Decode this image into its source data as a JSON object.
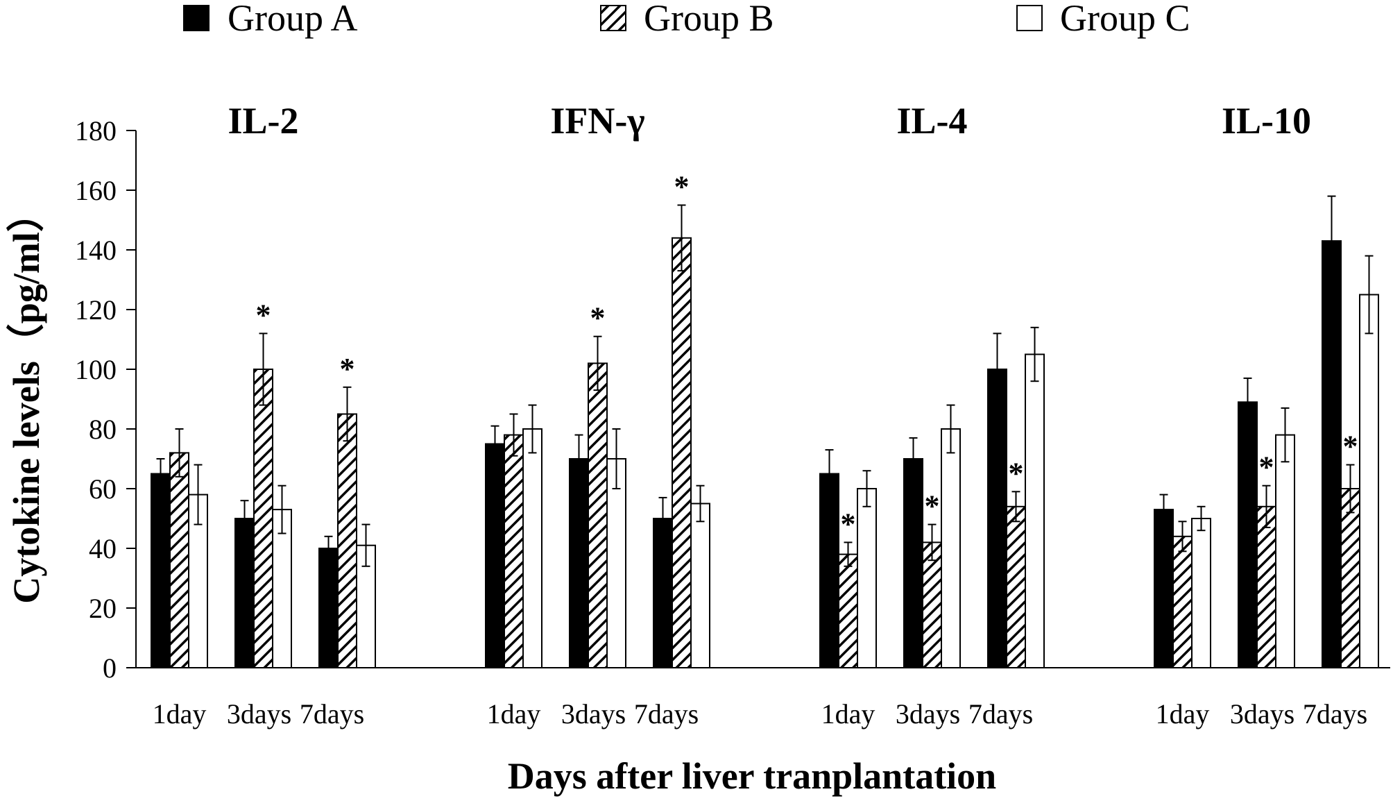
{
  "chart_data": {
    "type": "bar",
    "xlabel": "Days after liver tranplantation",
    "ylabel": "Cytokine levels（pg/ml）",
    "ylim": [
      0,
      180
    ],
    "yticks": [
      0,
      20,
      40,
      60,
      80,
      100,
      120,
      140,
      160,
      180
    ],
    "grid": false,
    "legend_position": "top",
    "legend": [
      {
        "name": "Group A",
        "fill": "solid-black"
      },
      {
        "name": "Group B",
        "fill": "diagonal-hatch"
      },
      {
        "name": "Group C",
        "fill": "white"
      }
    ],
    "significance_marker": "*",
    "panels": [
      {
        "title": "IL-2",
        "categories": [
          "1day",
          "3days",
          "7days"
        ],
        "series": [
          {
            "name": "Group A",
            "values": [
              65,
              50,
              40
            ],
            "errors": [
              5,
              6,
              4
            ]
          },
          {
            "name": "Group B",
            "values": [
              72,
              100,
              85
            ],
            "errors": [
              8,
              12,
              9
            ]
          },
          {
            "name": "Group C",
            "values": [
              58,
              53,
              41
            ],
            "errors": [
              10,
              8,
              7
            ]
          }
        ],
        "significant": [
          false,
          true,
          true
        ],
        "star_on_series": "Group B"
      },
      {
        "title": "IFN-γ",
        "categories": [
          "1day",
          "3days",
          "7days"
        ],
        "series": [
          {
            "name": "Group A",
            "values": [
              75,
              70,
              50
            ],
            "errors": [
              6,
              8,
              7
            ]
          },
          {
            "name": "Group B",
            "values": [
              78,
              102,
              144
            ],
            "errors": [
              7,
              9,
              11
            ]
          },
          {
            "name": "Group C",
            "values": [
              80,
              70,
              55
            ],
            "errors": [
              8,
              10,
              6
            ]
          }
        ],
        "significant": [
          false,
          true,
          true
        ],
        "star_on_series": "Group B"
      },
      {
        "title": "IL-4",
        "categories": [
          "1day",
          "3days",
          "7days"
        ],
        "series": [
          {
            "name": "Group A",
            "values": [
              65,
              70,
              100
            ],
            "errors": [
              8,
              7,
              12
            ]
          },
          {
            "name": "Group B",
            "values": [
              38,
              42,
              54
            ],
            "errors": [
              4,
              6,
              5
            ]
          },
          {
            "name": "Group C",
            "values": [
              60,
              80,
              105
            ],
            "errors": [
              6,
              8,
              9
            ]
          }
        ],
        "significant": [
          true,
          true,
          true
        ],
        "star_on_series": "Group B"
      },
      {
        "title": "IL-10",
        "categories": [
          "1day",
          "3days",
          "7days"
        ],
        "series": [
          {
            "name": "Group A",
            "values": [
              53,
              89,
              143
            ],
            "errors": [
              5,
              8,
              15
            ]
          },
          {
            "name": "Group B",
            "values": [
              44,
              54,
              60
            ],
            "errors": [
              5,
              7,
              8
            ]
          },
          {
            "name": "Group C",
            "values": [
              50,
              78,
              125
            ],
            "errors": [
              4,
              9,
              13
            ]
          }
        ],
        "significant": [
          false,
          true,
          true
        ],
        "star_on_series": "Group B"
      }
    ]
  }
}
